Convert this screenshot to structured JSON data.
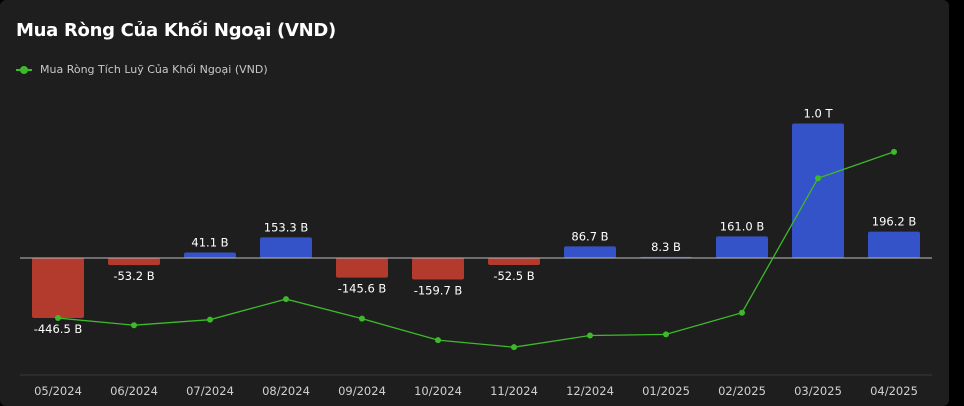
{
  "title": "Mua Ròng Của Khối Ngoại (VND)",
  "colors": {
    "positive": "#3553c8",
    "negative": "#b33b2e",
    "line": "#3dba2a"
  },
  "chart_data": {
    "type": "bar",
    "title": "Mua Ròng Của Khối Ngoại (VND)",
    "categories": [
      "05/2024",
      "06/2024",
      "07/2024",
      "08/2024",
      "09/2024",
      "10/2024",
      "11/2024",
      "12/2024",
      "01/2025",
      "02/2025",
      "03/2025",
      "04/2025"
    ],
    "series": [
      {
        "type": "bar",
        "values": [
          -446.5,
          -53.2,
          41.1,
          153.3,
          -145.6,
          -159.7,
          -52.5,
          86.7,
          8.3,
          161.0,
          1000,
          196.2
        ],
        "labels": [
          "-446.5 B",
          "-53.2 B",
          "41.1 B",
          "153.3 B",
          "-145.6 B",
          "-159.7 B",
          "-52.5 B",
          "86.7 B",
          "8.3 B",
          "161.0 B",
          "1.0 T",
          "196.2 B"
        ]
      },
      {
        "type": "line",
        "name": "Mua Ròng Tích Luỹ Của Khối Ngoại (VND)",
        "values": [
          -446.5,
          -499.7,
          -458.6,
          -305.3,
          -450.9,
          -610.6,
          -663.1,
          -576.4,
          -568.1,
          -407.1,
          593,
          789.2
        ]
      }
    ],
    "unit": "B VND",
    "grid": false,
    "legend": "top-left"
  }
}
